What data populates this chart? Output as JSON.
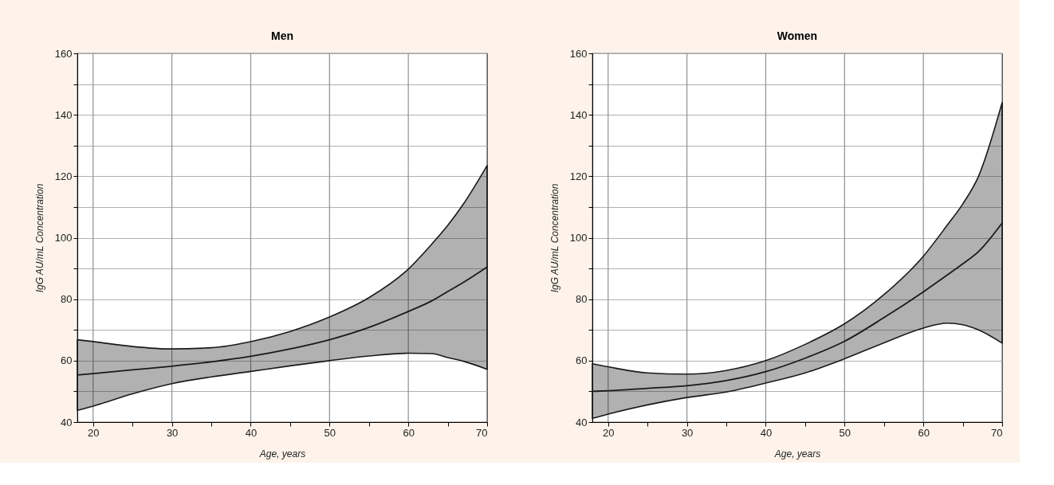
{
  "chart_data": [
    {
      "type": "line",
      "title": "Men",
      "xlabel": "Age, years",
      "ylabel": "IgG AU/mL Concentration",
      "x": [
        18,
        20,
        25,
        30,
        35,
        40,
        45,
        50,
        55,
        60,
        63,
        65,
        67,
        70
      ],
      "series": [
        {
          "color": "#1a1a1a",
          "values": [
            55.3,
            55.8,
            57,
            58.2,
            59.6,
            61.4,
            63.8,
            66.8,
            70.8,
            76,
            79.5,
            82.5,
            85.5,
            90.5
          ],
          "lower": [
            43.8,
            45.2,
            49.2,
            52.5,
            54.7,
            56.5,
            58.3,
            60,
            61.5,
            62.4,
            62.3,
            61,
            59.8,
            57.2
          ],
          "upper": [
            66.8,
            66.2,
            64.6,
            63.8,
            64.2,
            66.2,
            69.5,
            74.2,
            80.5,
            89.8,
            98,
            104,
            111,
            123.5
          ]
        }
      ],
      "xlim": [
        18,
        70
      ],
      "xticks": [
        20,
        {
          "value": 25,
          "label": null
        },
        30,
        {
          "value": 35,
          "label": null
        },
        40,
        {
          "value": 45,
          "label": null
        },
        50,
        {
          "value": 55,
          "label": null
        },
        60,
        {
          "value": 65,
          "label": null
        },
        70
      ],
      "ylim": [
        40,
        160
      ],
      "yticks": [
        40,
        {
          "value": 50,
          "label": null
        },
        60,
        {
          "value": 70,
          "label": null
        },
        80,
        {
          "value": 90,
          "label": null
        },
        100,
        {
          "value": 110,
          "label": null
        },
        120,
        {
          "value": 130,
          "label": null
        },
        140,
        {
          "value": 150,
          "label": null
        },
        160
      ],
      "grid": true,
      "marker": "none",
      "line_style": "solid"
    },
    {
      "type": "line",
      "title": "Women",
      "xlabel": "Age, years",
      "ylabel": "IgG AU/mL Concentration",
      "x": [
        18,
        20,
        25,
        30,
        35,
        40,
        45,
        50,
        55,
        60,
        63,
        65,
        67,
        70
      ],
      "series": [
        {
          "color": "#1a1a1a",
          "values": [
            50,
            50.2,
            51,
            51.8,
            53.5,
            56.4,
            60.8,
            66.3,
            74,
            82.4,
            87.8,
            91.5,
            95.5,
            104.8
          ],
          "lower": [
            41.2,
            42.6,
            45.6,
            48,
            49.8,
            52.7,
            56,
            60.6,
            65.8,
            70.6,
            72.2,
            71.7,
            70,
            65.7
          ],
          "upper": [
            59,
            58,
            56,
            55.6,
            56.8,
            60,
            65.3,
            72,
            81.5,
            94,
            104,
            111,
            120,
            144
          ]
        }
      ],
      "xlim": [
        18,
        70
      ],
      "xticks": [
        20,
        {
          "value": 25,
          "label": null
        },
        30,
        {
          "value": 35,
          "label": null
        },
        40,
        {
          "value": 45,
          "label": null
        },
        50,
        {
          "value": 55,
          "label": null
        },
        60,
        {
          "value": 65,
          "label": null
        },
        70
      ],
      "ylim": [
        40,
        160
      ],
      "yticks": [
        40,
        {
          "value": 50,
          "label": null
        },
        60,
        {
          "value": 70,
          "label": null
        },
        80,
        {
          "value": 90,
          "label": null
        },
        100,
        {
          "value": 110,
          "label": null
        },
        120,
        {
          "value": 130,
          "label": null
        },
        140,
        {
          "value": 150,
          "label": null
        },
        160
      ],
      "grid": true,
      "marker": "none",
      "line_style": "solid"
    }
  ]
}
